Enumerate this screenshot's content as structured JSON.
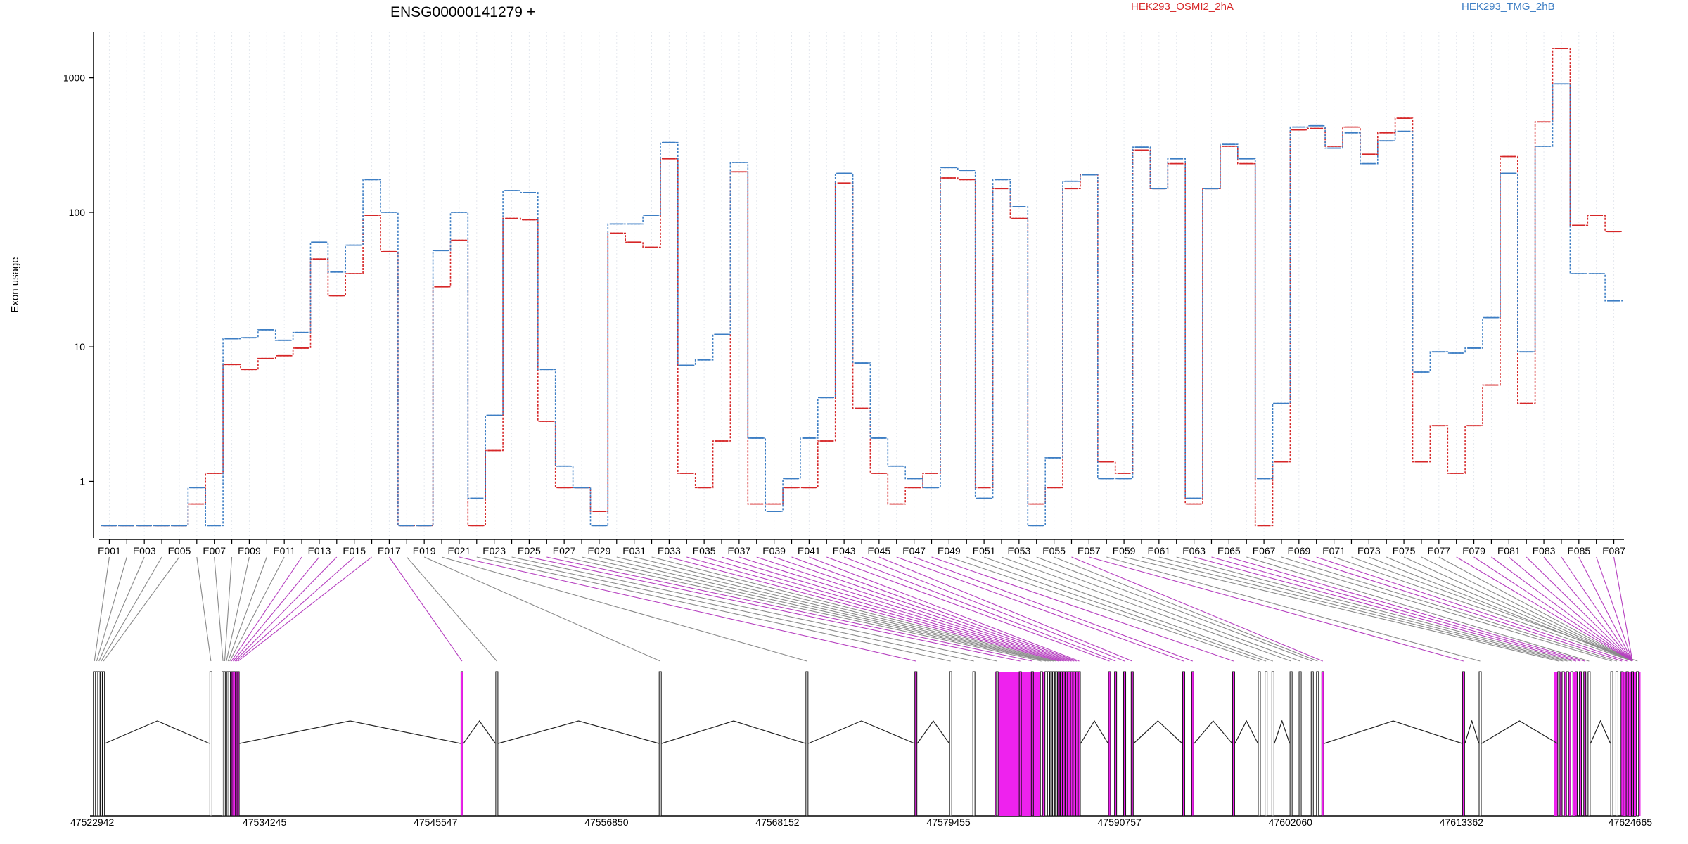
{
  "chart_data": {
    "type": "line",
    "title": "ENSG00000141279 +",
    "ylabel": "Exon usage",
    "yscale": "log",
    "ylim": [
      0.38,
      2200
    ],
    "yticks": [
      1,
      10,
      100,
      1000
    ],
    "ytick_labels": [
      "1",
      "10",
      "100",
      "1000"
    ],
    "legend_position": "top-right",
    "exons": [
      "E001",
      "E002",
      "E003",
      "E004",
      "E005",
      "E006",
      "E007",
      "E008",
      "E009",
      "E010",
      "E011",
      "E012",
      "E013",
      "E014",
      "E015",
      "E016",
      "E017",
      "E018",
      "E019",
      "E020",
      "E021",
      "E022",
      "E023",
      "E024",
      "E025",
      "E026",
      "E027",
      "E028",
      "E029",
      "E030",
      "E031",
      "E032",
      "E033",
      "E034",
      "E035",
      "E036",
      "E037",
      "E038",
      "E039",
      "E040",
      "E041",
      "E042",
      "E043",
      "E044",
      "E045",
      "E046",
      "E047",
      "E048",
      "E049",
      "E050",
      "E051",
      "E052",
      "E053",
      "E054",
      "E055",
      "E056",
      "E057",
      "E058",
      "E059",
      "E060",
      "E061",
      "E062",
      "E063",
      "E064",
      "E065",
      "E066",
      "E067",
      "E068",
      "E069",
      "E070",
      "E071",
      "E072",
      "E073",
      "E074",
      "E075",
      "E076",
      "E077",
      "E078",
      "E079",
      "E080",
      "E081",
      "E082",
      "E083",
      "E084",
      "E085",
      "E086",
      "E087"
    ],
    "exon_labels_shown": [
      "E001",
      "E003",
      "E005",
      "E007",
      "E009",
      "E011",
      "E013",
      "E015",
      "E017",
      "E019",
      "E021",
      "E023",
      "E025",
      "E027",
      "E029",
      "E031",
      "E033",
      "E035",
      "E037",
      "E039",
      "E041",
      "E043",
      "E045",
      "E047",
      "E049",
      "E051",
      "E053",
      "E055",
      "E057",
      "E059",
      "E061",
      "E063",
      "E065",
      "E067",
      "E069",
      "E071",
      "E073",
      "E075",
      "E077",
      "E079",
      "E081",
      "E083",
      "E085",
      "E087"
    ],
    "series": [
      {
        "name": "HEK293_OSMI2_2hA",
        "color": "#d62728",
        "values": [
          0.47,
          0.47,
          0.47,
          0.47,
          0.47,
          0.68,
          1.15,
          7.4,
          6.8,
          8.2,
          8.6,
          9.8,
          45,
          24,
          35,
          95,
          51,
          0.47,
          0.47,
          28,
          62,
          0.47,
          1.7,
          90,
          88,
          2.8,
          0.9,
          0.9,
          0.6,
          70,
          60,
          55,
          250,
          1.15,
          0.9,
          2.0,
          200,
          0.68,
          0.68,
          0.9,
          0.9,
          2.0,
          165,
          3.5,
          1.15,
          0.68,
          0.9,
          1.15,
          180,
          175,
          0.9,
          150,
          90,
          0.68,
          0.9,
          150,
          190,
          1.4,
          1.15,
          290,
          150,
          230,
          0.68,
          150,
          310,
          230,
          0.47,
          1.4,
          410,
          420,
          310,
          430,
          270,
          390,
          500,
          1.4,
          2.6,
          1.15,
          2.6,
          5.2,
          260,
          3.8,
          470,
          1650,
          80,
          95,
          72
        ]
      },
      {
        "name": "HEK293_TMG_2hB",
        "color": "#3d7ec4",
        "values": [
          0.47,
          0.47,
          0.47,
          0.47,
          0.47,
          0.9,
          0.47,
          11.5,
          11.7,
          13.4,
          11.2,
          12.8,
          60,
          36,
          57,
          175,
          100,
          0.47,
          0.47,
          52,
          100,
          0.75,
          3.1,
          145,
          140,
          6.8,
          1.3,
          0.9,
          0.47,
          82,
          82,
          95,
          330,
          7.3,
          8.0,
          12.4,
          235,
          2.1,
          0.6,
          1.05,
          2.1,
          4.2,
          195,
          7.6,
          2.1,
          1.3,
          1.05,
          0.9,
          215,
          205,
          0.75,
          175,
          110,
          0.47,
          1.5,
          170,
          190,
          1.05,
          1.05,
          305,
          150,
          250,
          0.75,
          150,
          320,
          250,
          1.05,
          3.8,
          430,
          440,
          300,
          390,
          230,
          340,
          400,
          6.5,
          9.2,
          9.0,
          9.8,
          16.5,
          195,
          9.2,
          310,
          900,
          35,
          35,
          22
        ]
      }
    ],
    "genomic_axis": {
      "ticks": [
        "47522942",
        "47534245",
        "47545547",
        "47556850",
        "47568152",
        "47579455",
        "47590757",
        "47602060",
        "47613362",
        "47624665"
      ]
    }
  }
}
